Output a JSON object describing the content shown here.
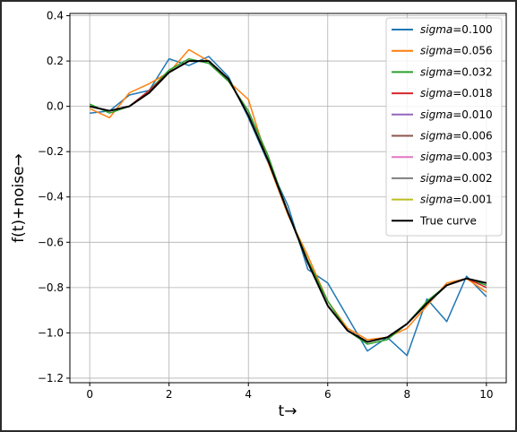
{
  "chart_data": {
    "type": "line",
    "title": "",
    "xlabel": "t→",
    "ylabel": "f(t)+noise→",
    "xlim": [
      -0.5,
      10.5
    ],
    "ylim": [
      -1.22,
      0.41
    ],
    "xticks": [
      0,
      2,
      4,
      6,
      8,
      10
    ],
    "xtick_labels": [
      "0",
      "2",
      "4",
      "6",
      "8",
      "10"
    ],
    "yticks": [
      0.4,
      0.2,
      0.0,
      -0.2,
      -0.4,
      -0.6,
      -0.8,
      -1.0,
      -1.2
    ],
    "ytick_labels": [
      "0.4",
      "0.2",
      "0.0",
      "−0.2",
      "−0.4",
      "−0.6",
      "−0.8",
      "−1.0",
      "−1.2"
    ],
    "grid": true,
    "legend_position": "top-right",
    "x": [
      0,
      0.5,
      1,
      1.5,
      2,
      2.5,
      3,
      3.5,
      4,
      4.5,
      5,
      5.5,
      6,
      6.5,
      7,
      7.5,
      8,
      8.5,
      9,
      9.5,
      10
    ],
    "series": [
      {
        "name": "sigma=0.100",
        "label_prefix": "sigma",
        "label_value": "=0.100",
        "color": "#1f77b4",
        "values": [
          -0.03,
          -0.02,
          0.05,
          0.07,
          0.21,
          0.18,
          0.22,
          0.13,
          -0.05,
          -0.25,
          -0.44,
          -0.72,
          -0.78,
          -0.93,
          -1.08,
          -1.02,
          -1.1,
          -0.85,
          -0.95,
          -0.75,
          -0.84
        ]
      },
      {
        "name": "sigma=0.056",
        "label_prefix": "sigma",
        "label_value": "=0.056",
        "color": "#ff7f0e",
        "values": [
          -0.01,
          -0.05,
          0.06,
          0.1,
          0.15,
          0.25,
          0.2,
          0.11,
          0.03,
          -0.25,
          -0.48,
          -0.66,
          -0.86,
          -0.98,
          -1.03,
          -1.02,
          -0.98,
          -0.88,
          -0.78,
          -0.76,
          -0.82
        ]
      },
      {
        "name": "sigma=0.032",
        "label_prefix": "sigma",
        "label_value": "=0.032",
        "color": "#2ca02c",
        "values": [
          0.01,
          -0.03,
          0.0,
          0.07,
          0.16,
          0.21,
          0.19,
          0.11,
          -0.02,
          -0.22,
          -0.47,
          -0.68,
          -0.86,
          -0.99,
          -1.05,
          -1.03,
          -0.96,
          -0.86,
          -0.79,
          -0.76,
          -0.79
        ]
      },
      {
        "name": "sigma=0.018",
        "label_prefix": "sigma",
        "label_value": "=0.018",
        "color": "#d62728",
        "values": [
          0.0,
          -0.02,
          0.0,
          0.07,
          0.15,
          0.2,
          0.2,
          0.12,
          -0.04,
          -0.24,
          -0.47,
          -0.69,
          -0.88,
          -0.99,
          -1.04,
          -1.02,
          -0.96,
          -0.87,
          -0.79,
          -0.76,
          -0.8
        ]
      },
      {
        "name": "sigma=0.010",
        "label_prefix": "sigma",
        "label_value": "=0.010",
        "color": "#9467bd",
        "values": [
          0.0,
          -0.02,
          0.0,
          0.06,
          0.15,
          0.2,
          0.2,
          0.12,
          -0.04,
          -0.24,
          -0.47,
          -0.69,
          -0.88,
          -0.99,
          -1.04,
          -1.02,
          -0.96,
          -0.87,
          -0.79,
          -0.76,
          -0.78
        ]
      },
      {
        "name": "sigma=0.006",
        "label_prefix": "sigma",
        "label_value": "=0.006",
        "color": "#8c564b",
        "values": [
          0.0,
          -0.02,
          0.0,
          0.06,
          0.15,
          0.2,
          0.2,
          0.12,
          -0.04,
          -0.24,
          -0.47,
          -0.69,
          -0.88,
          -0.99,
          -1.04,
          -1.02,
          -0.96,
          -0.87,
          -0.79,
          -0.76,
          -0.78
        ]
      },
      {
        "name": "sigma=0.003",
        "label_prefix": "sigma",
        "label_value": "=0.003",
        "color": "#e377c2",
        "values": [
          0.0,
          -0.02,
          0.0,
          0.06,
          0.15,
          0.2,
          0.2,
          0.12,
          -0.04,
          -0.24,
          -0.47,
          -0.69,
          -0.88,
          -0.99,
          -1.04,
          -1.02,
          -0.96,
          -0.87,
          -0.79,
          -0.76,
          -0.78
        ]
      },
      {
        "name": "sigma=0.002",
        "label_prefix": "sigma",
        "label_value": "=0.002",
        "color": "#7f7f7f",
        "values": [
          0.0,
          -0.02,
          0.0,
          0.06,
          0.15,
          0.2,
          0.2,
          0.12,
          -0.04,
          -0.24,
          -0.47,
          -0.69,
          -0.88,
          -0.99,
          -1.04,
          -1.02,
          -0.96,
          -0.87,
          -0.79,
          -0.76,
          -0.78
        ]
      },
      {
        "name": "sigma=0.001",
        "label_prefix": "sigma",
        "label_value": "=0.001",
        "color": "#bcbd22",
        "values": [
          0.0,
          -0.02,
          0.0,
          0.06,
          0.15,
          0.2,
          0.2,
          0.12,
          -0.04,
          -0.24,
          -0.47,
          -0.69,
          -0.88,
          -0.99,
          -1.04,
          -1.02,
          -0.96,
          -0.87,
          -0.79,
          -0.76,
          -0.78
        ]
      },
      {
        "name": "True curve",
        "label_prefix": "",
        "label_value": "True curve",
        "color": "#000000",
        "values": [
          0.0,
          -0.02,
          0.0,
          0.06,
          0.15,
          0.2,
          0.2,
          0.12,
          -0.04,
          -0.24,
          -0.47,
          -0.69,
          -0.88,
          -0.99,
          -1.04,
          -1.02,
          -0.96,
          -0.87,
          -0.79,
          -0.76,
          -0.78
        ]
      }
    ]
  }
}
